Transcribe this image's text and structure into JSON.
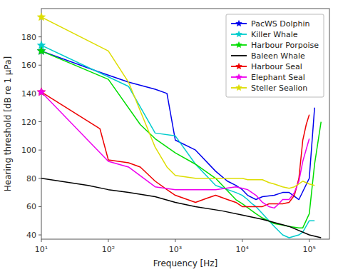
{
  "chart_data": {
    "type": "line",
    "title": "",
    "xlabel": "Frequency [Hz]",
    "ylabel": "Hearing threshold [dB re 1 μPa]",
    "log": "x",
    "xlim": [
      10,
      200000
    ],
    "ylim": [
      37,
      200
    ],
    "xticks": [
      {
        "value": 10,
        "label": "10¹"
      },
      {
        "value": 100,
        "label": "10²"
      },
      {
        "value": 1000,
        "label": "10³"
      },
      {
        "value": 10000,
        "label": "10⁴"
      },
      {
        "value": 100000,
        "label": "10⁵"
      }
    ],
    "yticks": [
      40,
      60,
      80,
      100,
      120,
      140,
      160,
      180
    ],
    "grid": false,
    "legend": "upper right",
    "series": [
      {
        "name": "PacWS Dolphin",
        "color": "#0000ee",
        "marker": "star",
        "marker_x": 10,
        "marker_y": 170,
        "x": [
          10,
          75,
          200,
          500,
          750,
          1000,
          2000,
          4000,
          6000,
          8000,
          10000,
          12000,
          16000,
          20000,
          30000,
          40000,
          50000,
          70000,
          100000,
          120000
        ],
        "values": [
          170,
          155,
          148,
          143,
          140,
          107,
          100,
          85,
          78,
          75,
          72,
          68,
          65,
          67,
          68,
          70,
          70,
          65,
          80,
          130
        ]
      },
      {
        "name": "Killer Whale",
        "color": "#00cccc",
        "marker": "star",
        "marker_x": 10,
        "marker_y": 174,
        "x": [
          10,
          200,
          500,
          1000,
          2000,
          4000,
          8000,
          10000,
          12000,
          14000,
          16000,
          20000,
          25000,
          30000,
          40000,
          50000,
          70000,
          80000,
          100000,
          120000
        ],
        "values": [
          174,
          145,
          112,
          110,
          90,
          75,
          70,
          68,
          65,
          62,
          60,
          55,
          50,
          46,
          40,
          38,
          40,
          42,
          50,
          50
        ]
      },
      {
        "name": "Harbour Porpoise",
        "color": "#00dd00",
        "marker": "star",
        "marker_x": 10,
        "marker_y": 170,
        "x": [
          10,
          100,
          300,
          500,
          1000,
          2000,
          4000,
          8000,
          10000,
          16000,
          20000,
          30000,
          40000,
          50000,
          70000,
          80000,
          100000,
          120000,
          150000
        ],
        "values": [
          170,
          150,
          118,
          108,
          98,
          90,
          80,
          65,
          62,
          55,
          52,
          48,
          47,
          46,
          45,
          45,
          55,
          90,
          120
        ]
      },
      {
        "name": "Baleen Whale",
        "color": "#000000",
        "x": [
          10,
          50,
          100,
          200,
          500,
          1000,
          2000,
          5000,
          10000,
          20000,
          50000,
          100000,
          150000
        ],
        "values": [
          80,
          75,
          72,
          70,
          67,
          63,
          60,
          57,
          54,
          51,
          46,
          40,
          38
        ]
      },
      {
        "name": "Harbour Seal",
        "color": "#ee0000",
        "marker": "star",
        "marker_x": 10,
        "marker_y": 141,
        "x": [
          10,
          75,
          100,
          200,
          300,
          500,
          750,
          1000,
          2000,
          3000,
          4000,
          6000,
          8000,
          10000,
          12000,
          16000,
          20000,
          25000,
          30000,
          40000,
          50000,
          60000,
          70000,
          80000,
          90000,
          100000
        ],
        "values": [
          141,
          115,
          93,
          91,
          88,
          78,
          72,
          68,
          63,
          66,
          68,
          65,
          63,
          60,
          60,
          60,
          60,
          62,
          62,
          62,
          63,
          68,
          80,
          107,
          118,
          125
        ]
      },
      {
        "name": "Elephant Seal",
        "color": "#ee00ee",
        "marker": "star",
        "marker_x": 10,
        "marker_y": 141,
        "x": [
          10,
          100,
          200,
          500,
          1000,
          2000,
          4000,
          8000,
          10000,
          12000,
          16000,
          20000,
          25000,
          30000,
          35000,
          40000,
          50000,
          60000,
          70000,
          80000,
          100000
        ],
        "values": [
          141,
          92,
          88,
          74,
          72,
          72,
          72,
          74,
          73,
          72,
          68,
          63,
          60,
          59,
          62,
          65,
          65,
          70,
          78,
          92,
          108
        ]
      },
      {
        "name": "Steller Sealion",
        "color": "#dddd00",
        "marker": "star",
        "marker_x": 10,
        "marker_y": 194,
        "x": [
          10,
          100,
          200,
          500,
          750,
          1000,
          2000,
          4000,
          6000,
          8000,
          10000,
          12000,
          16000,
          20000,
          25000,
          30000,
          40000,
          50000,
          60000,
          70000,
          80000,
          100000,
          120000
        ],
        "values": [
          194,
          170,
          148,
          102,
          88,
          82,
          80,
          80,
          80,
          80,
          80,
          79,
          79,
          79,
          77,
          76,
          74,
          73,
          74,
          76,
          78,
          76,
          75
        ]
      }
    ]
  }
}
